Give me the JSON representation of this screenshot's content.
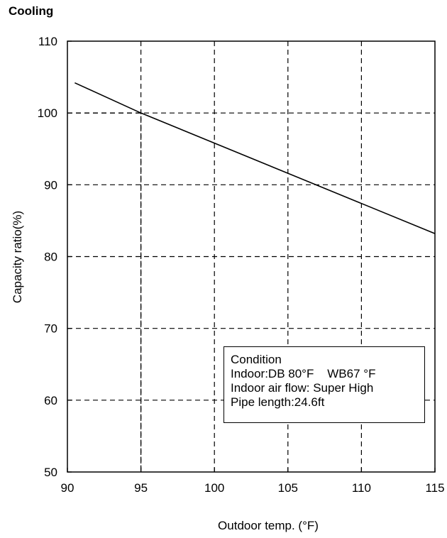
{
  "chart_data": {
    "type": "line",
    "title": "Cooling",
    "xlabel": "Outdoor temp. (°F)",
    "ylabel": "Capacity ratio(%)",
    "xlim": [
      90,
      115
    ],
    "ylim": [
      50,
      110
    ],
    "x_ticks": [
      "90",
      "95",
      "100",
      "105",
      "110",
      "115"
    ],
    "y_ticks": [
      "50",
      "60",
      "70",
      "80",
      "90",
      "100",
      "110"
    ],
    "grid": true,
    "series": [
      {
        "x": [
          90.5,
          95,
          115
        ],
        "y": [
          104.2,
          100,
          83.2
        ]
      }
    ],
    "reference_point": {
      "x": 95,
      "y": 100
    },
    "annotation": {
      "lines": [
        "Condition",
        "Indoor:DB 80°F    WB67 °F",
        "Indoor air flow: Super High",
        "Pipe length:24.6ft"
      ]
    }
  }
}
